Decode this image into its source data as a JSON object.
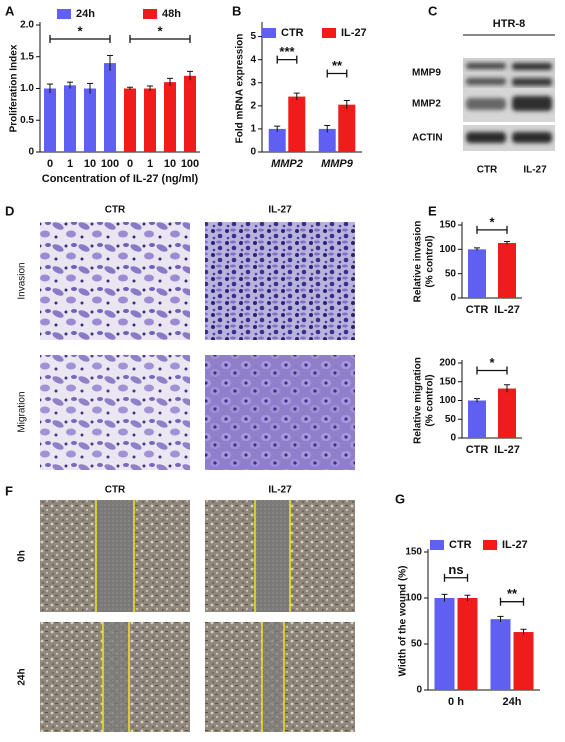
{
  "figure": {
    "panel_labels": [
      "A",
      "B",
      "C",
      "D",
      "E",
      "F",
      "G"
    ],
    "blot": {
      "cell_line": "HTR-8",
      "rows": [
        "MMP9",
        "MMP2",
        "ACTIN"
      ],
      "columns": [
        "CTR",
        "IL-27"
      ]
    },
    "micrographs": {
      "columns": [
        "CTR",
        "IL-27"
      ],
      "rows": [
        "Invasion",
        "Migration"
      ]
    },
    "wound_images": {
      "columns": [
        "CTR",
        "IL-27"
      ],
      "rows": [
        "0h",
        "24h"
      ]
    }
  },
  "chart_data": [
    {
      "type": "bar",
      "categories": [
        "0",
        "1",
        "10",
        "100",
        "0",
        "1",
        "10",
        "100"
      ],
      "series": [
        {
          "name": "24h",
          "color": "#5f5ff2",
          "values": [
            1.0,
            1.05,
            1.0,
            1.4,
            null,
            null,
            null,
            null
          ],
          "errors": [
            0.07,
            0.05,
            0.08,
            0.12,
            null,
            null,
            null,
            null
          ]
        },
        {
          "name": "48h",
          "color": "#f01c1c",
          "values": [
            null,
            null,
            null,
            null,
            1.0,
            1.0,
            1.1,
            1.2
          ],
          "errors": [
            null,
            null,
            null,
            null,
            0.02,
            0.04,
            0.06,
            0.07
          ]
        }
      ],
      "xlabel": "Concentration of  IL-27 (ng/ml)",
      "ylabel": "Proliferation Index",
      "ylim": [
        0,
        2.0
      ],
      "yticks": [
        0,
        0.5,
        {
          "value": 1,
          "label": "1.0"
        },
        1.5,
        {
          "value": 2,
          "label": "2.0"
        }
      ],
      "annotations": [
        "*",
        "*"
      ]
    },
    {
      "type": "bar",
      "categories": [
        "MMP2",
        "MMP9"
      ],
      "series": [
        {
          "name": "CTR",
          "color": "#5f5ff2",
          "values": [
            1.0,
            1.0
          ],
          "errors": [
            0.12,
            0.15
          ]
        },
        {
          "name": "IL-27",
          "color": "#f01c1c",
          "values": [
            2.4,
            2.05
          ],
          "errors": [
            0.15,
            0.18
          ]
        }
      ],
      "ylabel": "Fold mRNA expression",
      "ylim": [
        0,
        5.5
      ],
      "yticks": [
        0,
        1,
        2,
        3,
        4,
        5
      ],
      "annotations": [
        "***",
        "**"
      ]
    },
    {
      "type": "bar",
      "categories": [
        "CTR",
        "IL-27"
      ],
      "values": [
        100,
        113
      ],
      "errors": [
        3,
        3
      ],
      "colors": [
        "#5f5ff2",
        "#f01c1c"
      ],
      "ylabel": [
        "Relative invasion",
        "(% control)"
      ],
      "ylim": [
        0,
        150
      ],
      "yticks": [
        0,
        50,
        100,
        150
      ],
      "annotations": [
        "*"
      ]
    },
    {
      "type": "bar",
      "categories": [
        "CTR",
        "IL-27"
      ],
      "values": [
        100,
        132
      ],
      "errors": [
        5,
        10
      ],
      "colors": [
        "#5f5ff2",
        "#f01c1c"
      ],
      "ylabel": [
        "Relative migration",
        "(% control)"
      ],
      "ylim": [
        0,
        200
      ],
      "yticks": [
        0,
        50,
        100,
        150,
        200
      ],
      "annotations": [
        "*"
      ]
    },
    {
      "type": "bar",
      "categories": [
        "0 h",
        "24h"
      ],
      "series": [
        {
          "name": "CTR",
          "color": "#5f5ff2",
          "values": [
            100,
            77
          ],
          "errors": [
            4,
            3
          ]
        },
        {
          "name": "IL-27",
          "color": "#f01c1c",
          "values": [
            100,
            63
          ],
          "errors": [
            3,
            3
          ]
        }
      ],
      "ylabel": "Width of the wound  (%)",
      "ylim": [
        0,
        150
      ],
      "yticks": [
        0,
        50,
        100,
        150
      ],
      "annotations": [
        "ns",
        "**"
      ]
    }
  ]
}
